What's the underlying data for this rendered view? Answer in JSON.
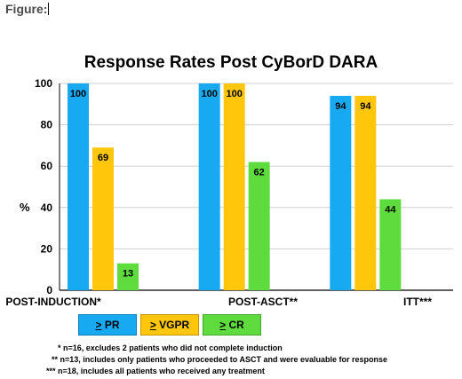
{
  "figure_label": "Figure:",
  "chart_data": {
    "type": "bar",
    "title": "Response Rates Post CyBorD DARA",
    "xlabel": "",
    "ylabel": "%",
    "ylim": [
      0,
      100
    ],
    "yticks": [
      0,
      20,
      40,
      60,
      80,
      100
    ],
    "grid": "horizontal",
    "legend_position": "bottom",
    "categories": [
      "POST-INDUCTION*",
      "POST-ASCT**",
      "ITT***"
    ],
    "series": [
      {
        "name": "> PR",
        "color": "#18a9f3",
        "values": [
          100,
          100,
          94
        ]
      },
      {
        "name": "> VGPR",
        "color": "#ffc60b",
        "values": [
          69,
          100,
          94
        ]
      },
      {
        "name": "> CR",
        "color": "#5edc3d",
        "values": [
          13,
          62,
          44
        ]
      }
    ]
  },
  "legend": [
    {
      "symbol": ">",
      "label": " PR",
      "color": "#18a9f3"
    },
    {
      "symbol": ">",
      "label": " VGPR",
      "color": "#ffc60b"
    },
    {
      "symbol": ">",
      "label": " CR",
      "color": "#5edc3d"
    }
  ],
  "footnotes": [
    "* n=16, excludes 2 patients who did not complete induction",
    "** n=13, includes only patients who proceeded to ASCT and were evaluable for response",
    "*** n=18, includes all patients who received any treatment"
  ]
}
